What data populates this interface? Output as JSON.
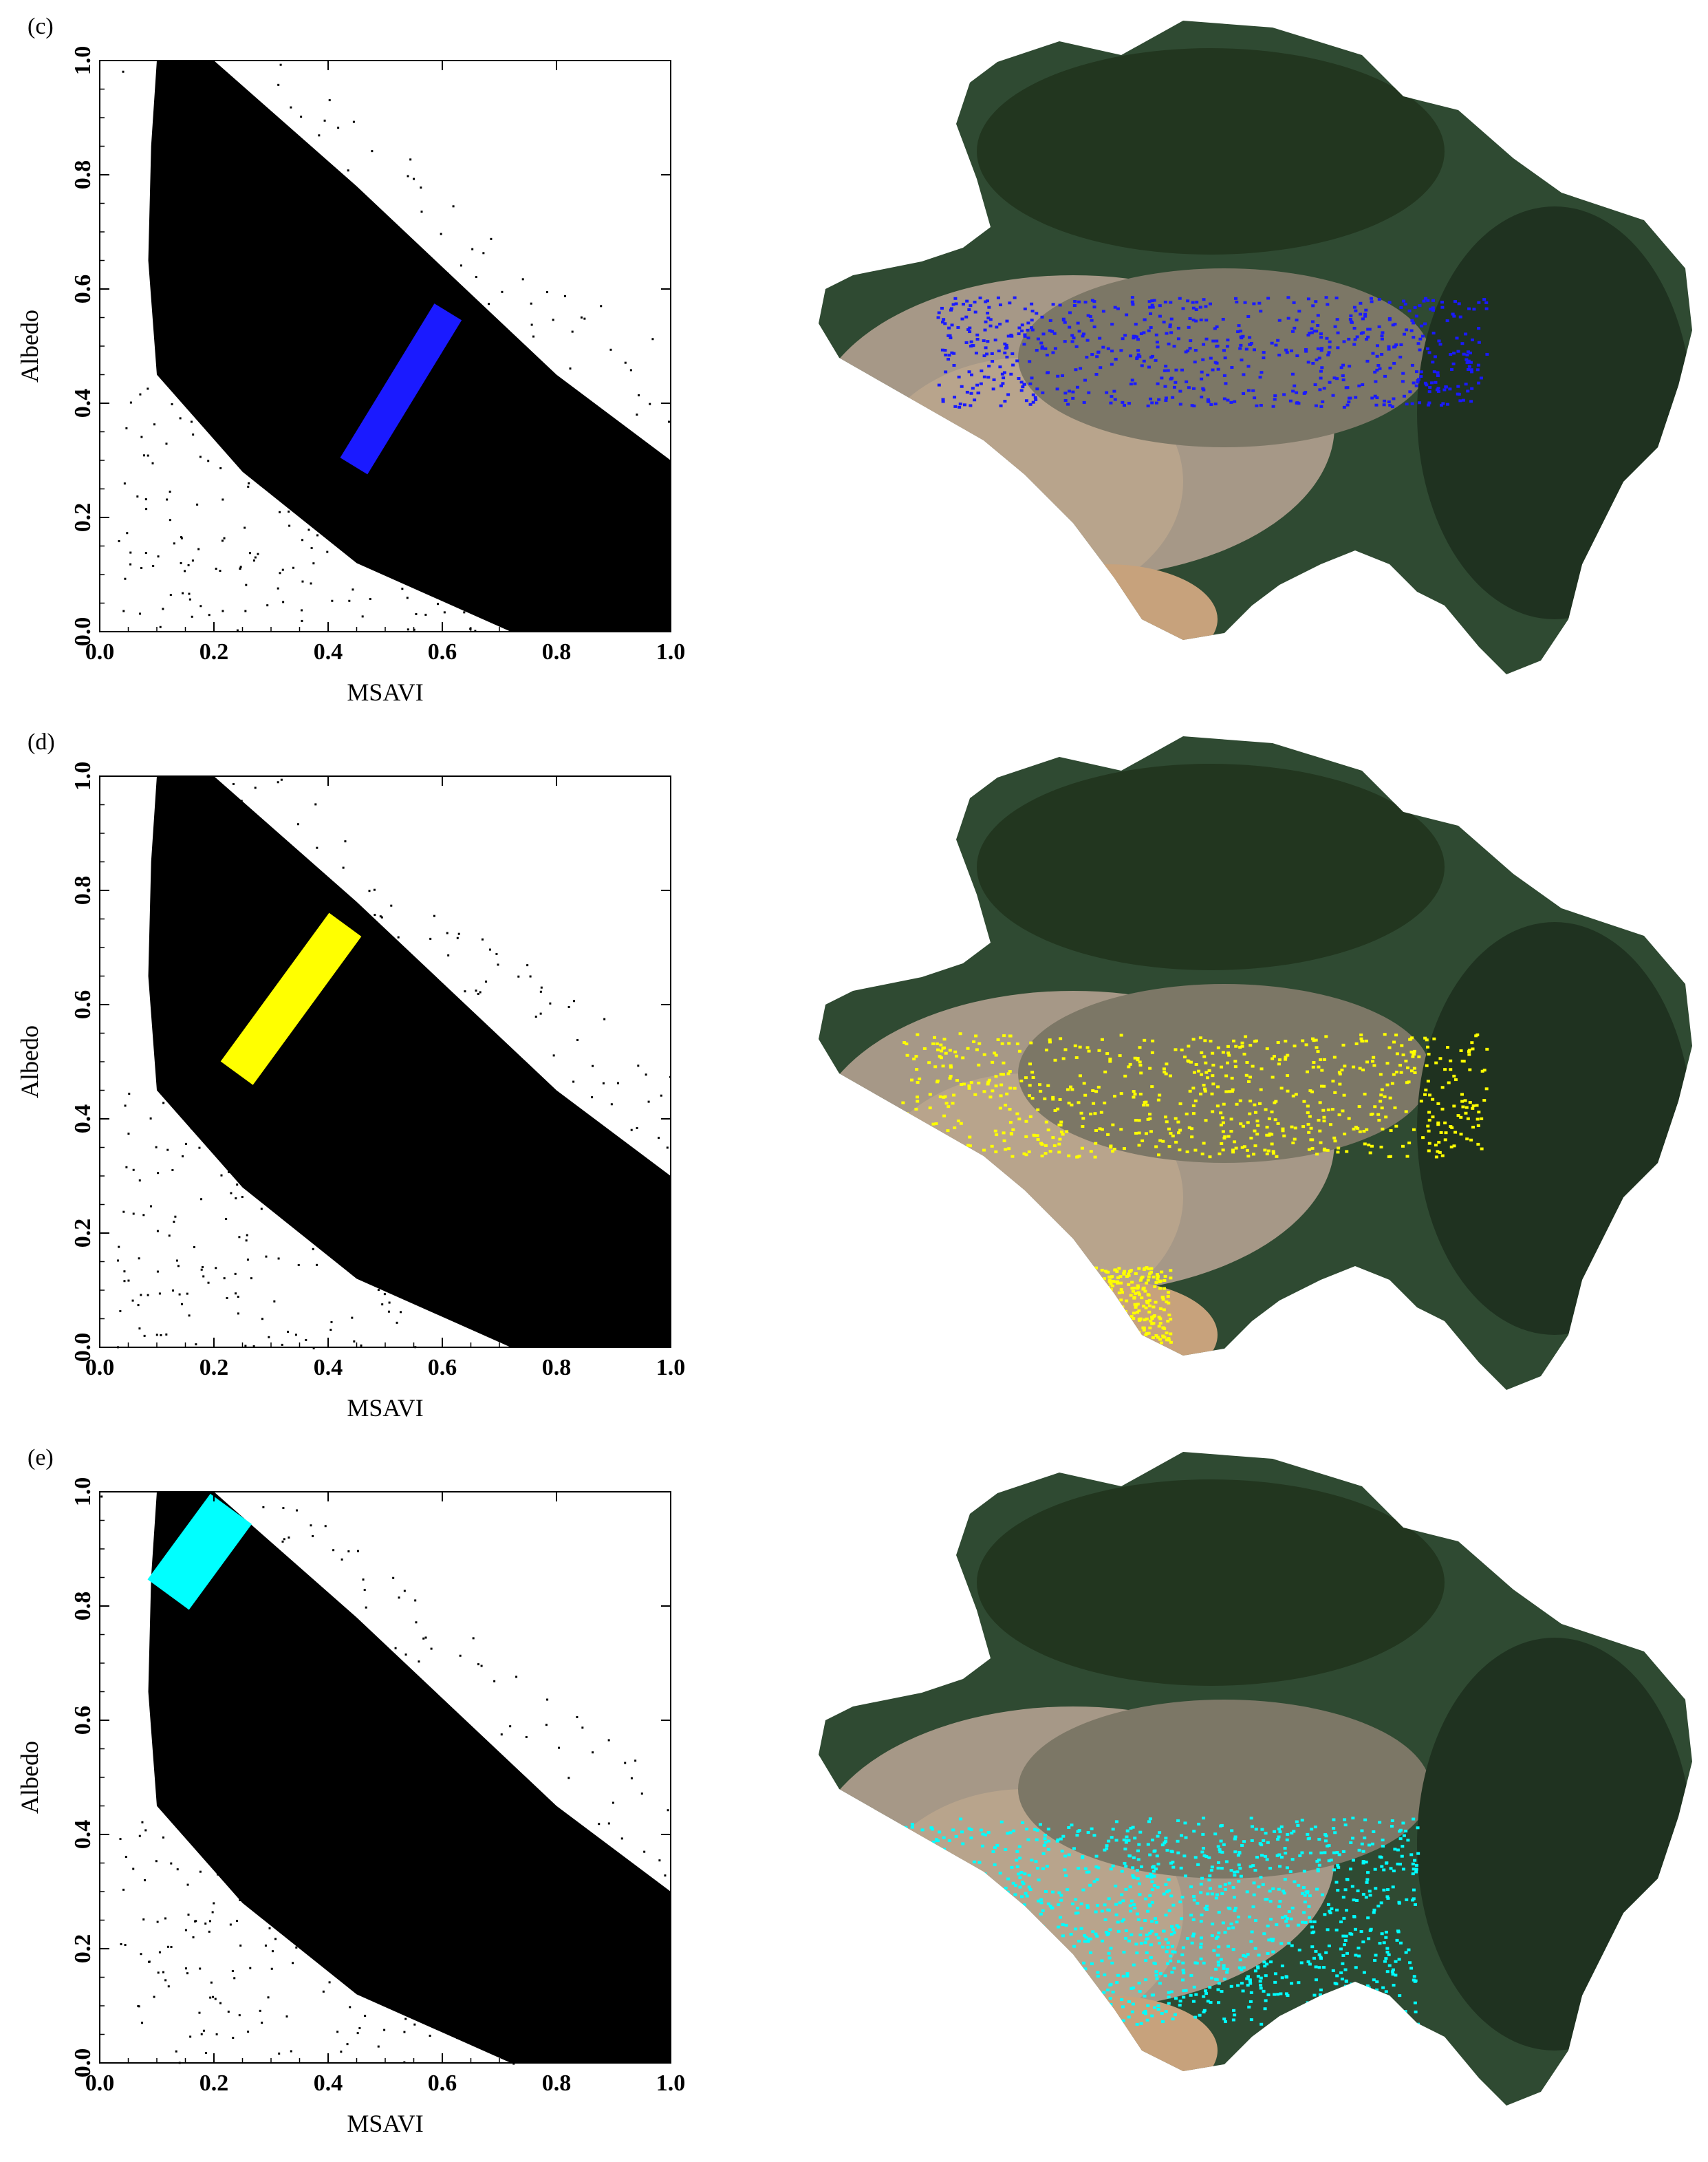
{
  "panels": [
    {
      "label": "(c)",
      "highlight_color": "#1a1aff",
      "chart_data": {
        "type": "scatter",
        "xlabel": "MSAVI",
        "ylabel": "Albedo",
        "xlim": [
          0.0,
          1.0
        ],
        "ylim": [
          0.0,
          1.0
        ],
        "xticks": [
          "0.0",
          "0.2",
          "0.4",
          "0.6",
          "0.8",
          "1.0"
        ],
        "yticks": [
          "0.0",
          "0.2",
          "0.4",
          "0.6",
          "0.8",
          "1.0"
        ],
        "point_color": "#000000",
        "highlight_region": {
          "from": [
            0.445,
            0.29
          ],
          "to": [
            0.61,
            0.56
          ],
          "half_width": 0.028
        }
      }
    },
    {
      "label": "(d)",
      "highlight_color": "#ffff00",
      "chart_data": {
        "type": "scatter",
        "xlabel": "MSAVI",
        "ylabel": "Albedo",
        "xlim": [
          0.0,
          1.0
        ],
        "ylim": [
          0.0,
          1.0
        ],
        "xticks": [
          "0.0",
          "0.2",
          "0.4",
          "0.6",
          "0.8",
          "1.0"
        ],
        "yticks": [
          "0.0",
          "0.2",
          "0.4",
          "0.6",
          "0.8",
          "1.0"
        ],
        "point_color": "#000000",
        "highlight_region": {
          "from": [
            0.24,
            0.48
          ],
          "to": [
            0.43,
            0.74
          ],
          "half_width": 0.035
        }
      }
    },
    {
      "label": "(e)",
      "highlight_color": "#00ffff",
      "chart_data": {
        "type": "scatter",
        "xlabel": "MSAVI",
        "ylabel": "Albedo",
        "xlim": [
          0.0,
          1.0
        ],
        "ylim": [
          0.0,
          1.0
        ],
        "xticks": [
          "0.0",
          "0.2",
          "0.4",
          "0.6",
          "0.8",
          "1.0"
        ],
        "yticks": [
          "0.0",
          "0.2",
          "0.4",
          "0.6",
          "0.8",
          "1.0"
        ],
        "point_color": "#000000",
        "highlight_region": {
          "from": [
            0.12,
            0.82
          ],
          "to": [
            0.23,
            0.97
          ],
          "half_width": 0.045
        }
      }
    }
  ]
}
